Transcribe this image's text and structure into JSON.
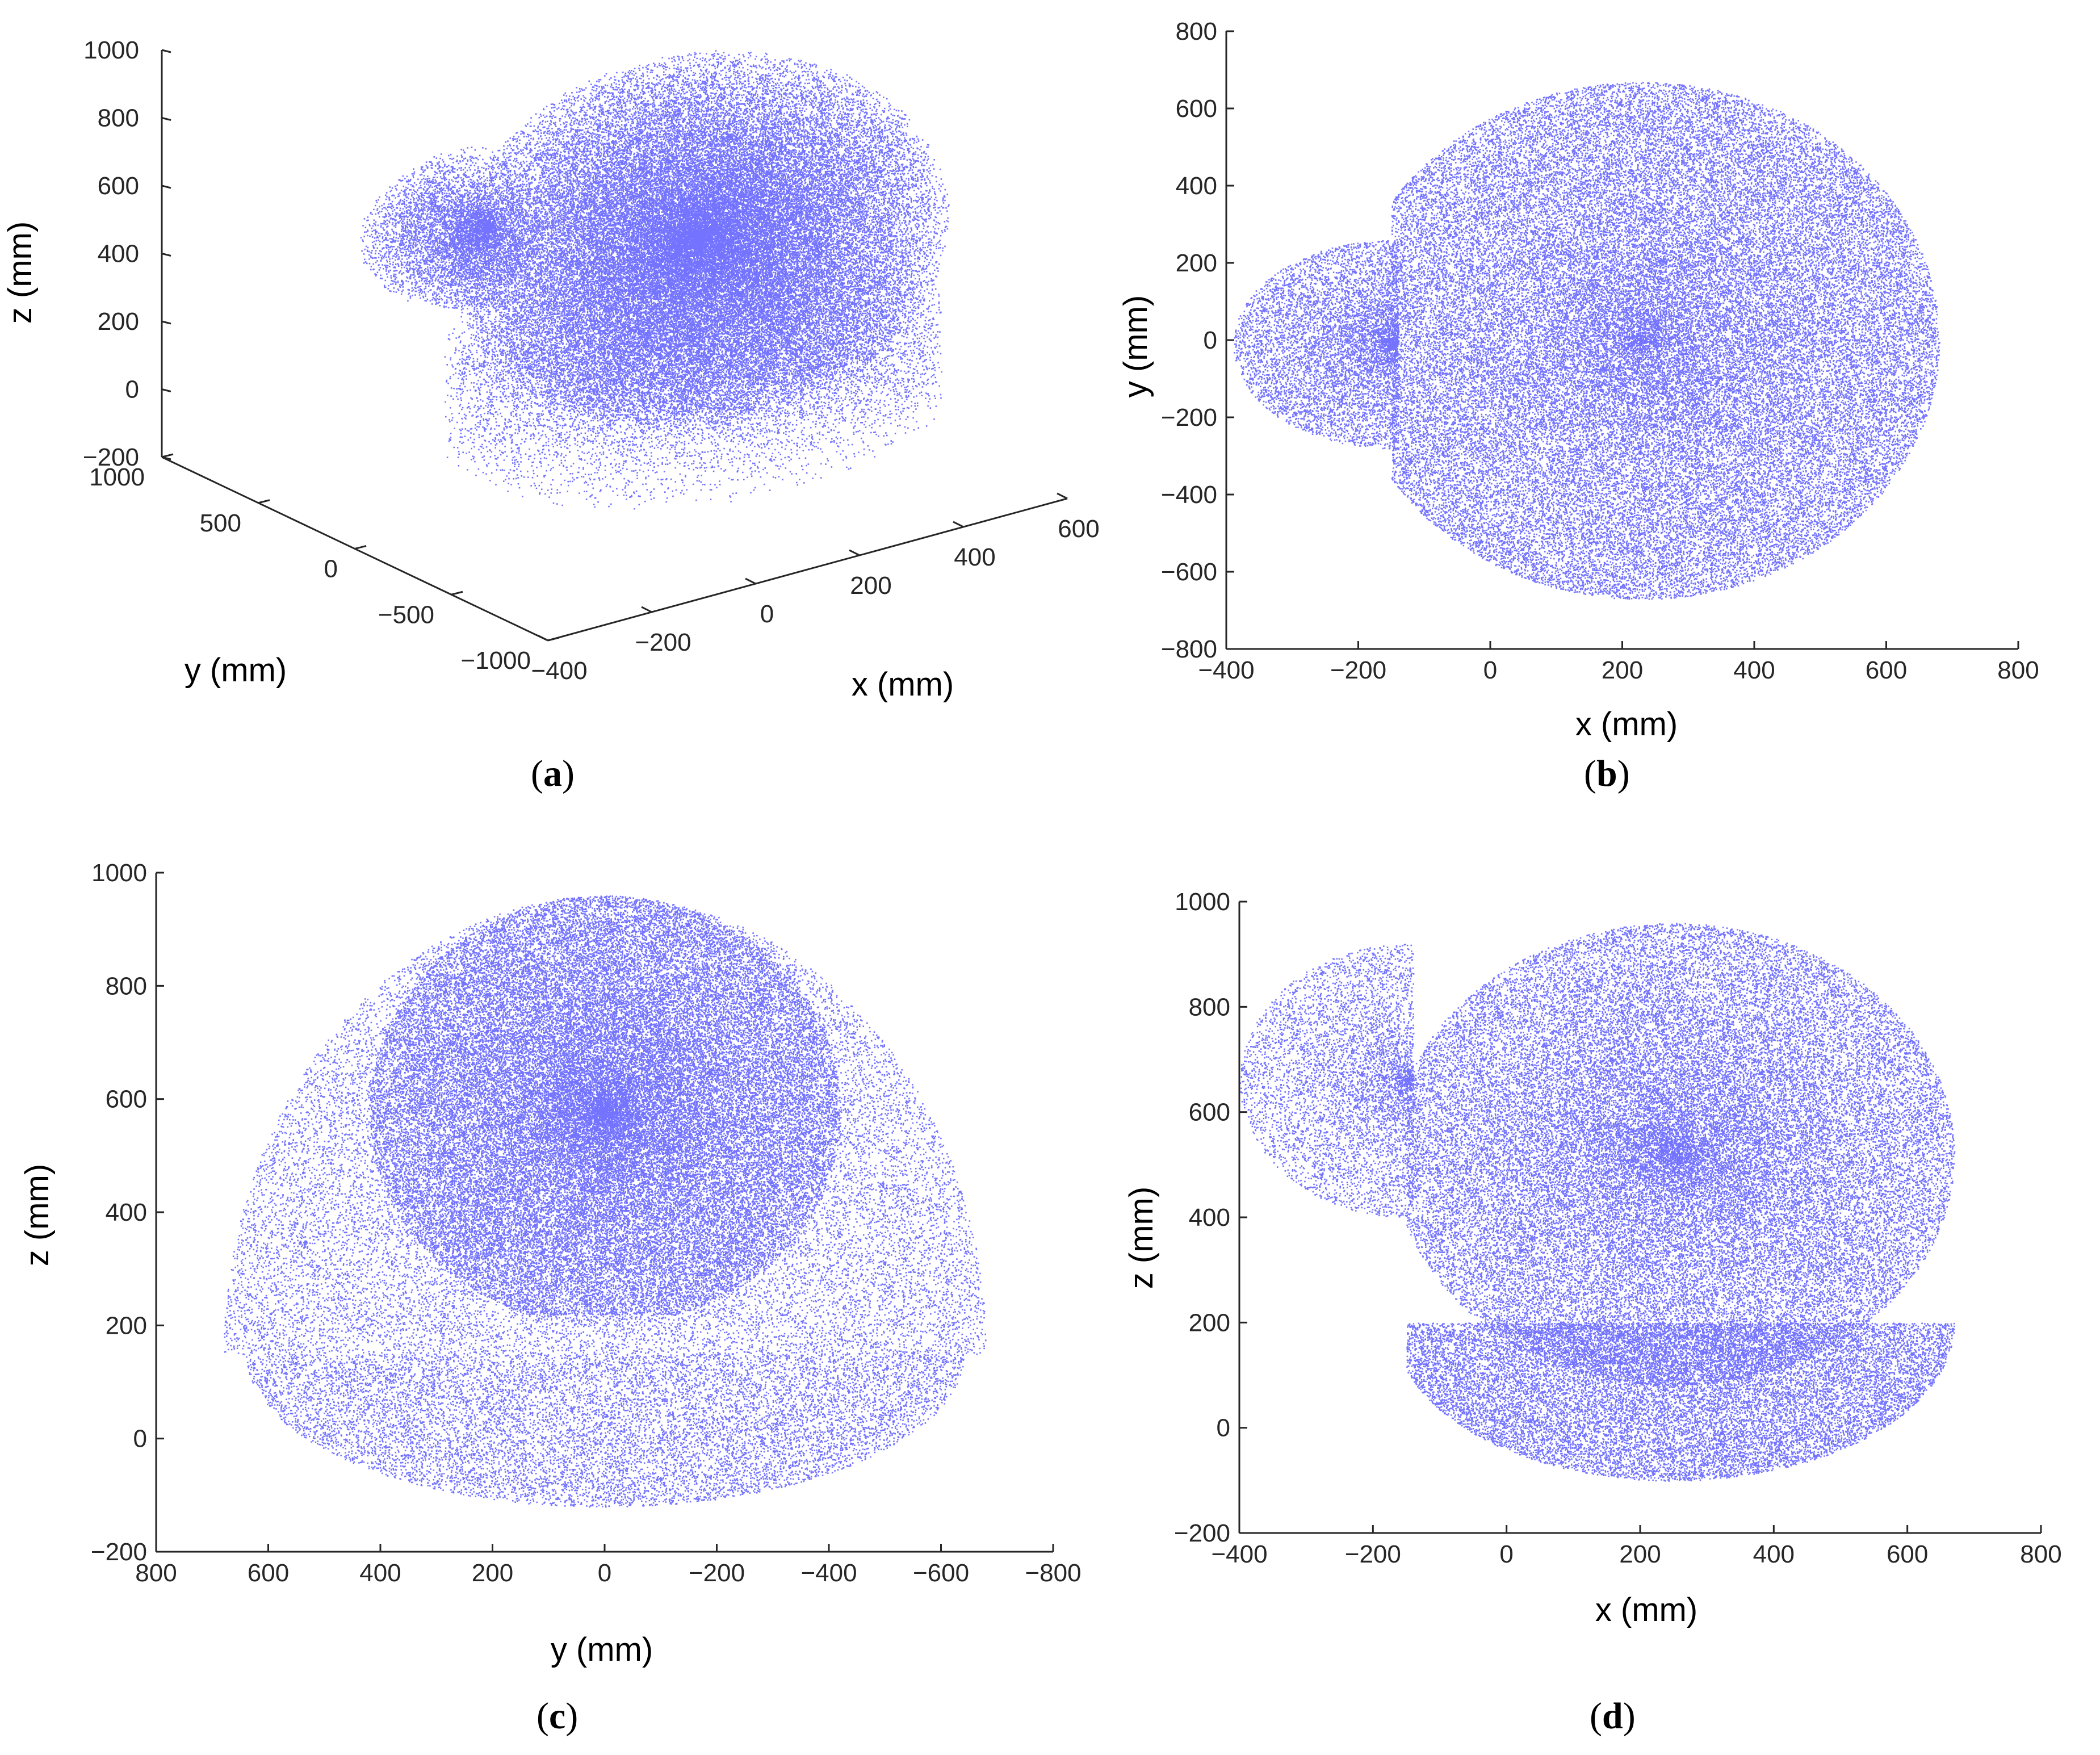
{
  "colors": {
    "points": "#0000ff",
    "axis": "#262626"
  },
  "chart_data": [
    {
      "id": "a",
      "type": "scatter",
      "projection": "3d",
      "caption_letter": "a",
      "xlabel": "x (mm)",
      "ylabel": "y  (mm)",
      "zlabel": "z (mm)",
      "xlim": [
        -400,
        600
      ],
      "ylim": [
        -1000,
        1000
      ],
      "zlim": [
        -200,
        1000
      ],
      "xticks": [
        -400,
        -200,
        0,
        200,
        400,
        600
      ],
      "yticks": [
        -1000,
        -500,
        0,
        500,
        1000
      ],
      "zticks": [
        -200,
        0,
        200,
        400,
        600,
        800,
        1000
      ],
      "x_ticklabels": [
        "−400",
        "−200",
        "0",
        "200",
        "400",
        "600"
      ],
      "y_ticklabels": [
        "−1000",
        "−500",
        "0",
        "500",
        "1000"
      ],
      "z_ticklabels": [
        "−200",
        "0",
        "200",
        "400",
        "600",
        "800",
        "1000"
      ],
      "grid": false
    },
    {
      "id": "b",
      "type": "scatter",
      "caption_letter": "b",
      "xlabel": "x (mm)",
      "ylabel": "y (mm)",
      "xlim": [
        -400,
        800
      ],
      "ylim": [
        -800,
        800
      ],
      "xticks": [
        -400,
        -200,
        0,
        200,
        400,
        600,
        800
      ],
      "yticks": [
        -800,
        -600,
        -400,
        -200,
        0,
        200,
        400,
        600,
        800
      ],
      "x_ticklabels": [
        "−400",
        "−200",
        "0",
        "200",
        "400",
        "600",
        "800"
      ],
      "y_ticklabels": [
        "−800",
        "−600",
        "−400",
        "−200",
        "0",
        "200",
        "400",
        "600",
        "800"
      ],
      "grid": false
    },
    {
      "id": "c",
      "type": "scatter",
      "caption_letter": "c",
      "xlabel": "y (mm)",
      "ylabel": "z (mm)",
      "xlim": [
        800,
        -800
      ],
      "x_reversed": true,
      "ylim": [
        -200,
        1000
      ],
      "xticks": [
        800,
        600,
        400,
        200,
        0,
        -200,
        -400,
        -600,
        -800
      ],
      "yticks": [
        -200,
        0,
        200,
        400,
        600,
        800,
        1000
      ],
      "x_ticklabels": [
        "800",
        "600",
        "400",
        "200",
        "0",
        "−200",
        "−400",
        "−600",
        "−800"
      ],
      "y_ticklabels": [
        "−200",
        "0",
        "200",
        "400",
        "600",
        "800",
        "1000"
      ],
      "grid": false
    },
    {
      "id": "d",
      "type": "scatter",
      "caption_letter": "d",
      "xlabel": "x (mm)",
      "ylabel": "z (mm)",
      "xlim": [
        -400,
        800
      ],
      "ylim": [
        -200,
        1000
      ],
      "xticks": [
        -400,
        -200,
        0,
        200,
        400,
        600,
        800
      ],
      "yticks": [
        -200,
        0,
        200,
        400,
        600,
        800,
        1000
      ],
      "x_ticklabels": [
        "−400",
        "−200",
        "0",
        "200",
        "400",
        "600",
        "800"
      ],
      "y_ticklabels": [
        "−200",
        "0",
        "200",
        "400",
        "600",
        "800",
        "1000"
      ],
      "grid": false
    }
  ]
}
